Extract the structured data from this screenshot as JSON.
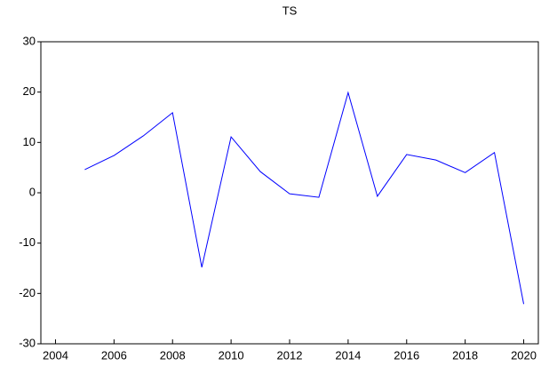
{
  "chart_data": {
    "type": "line",
    "title": "TS",
    "x": [
      2005,
      2006,
      2007,
      2008,
      2009,
      2010,
      2011,
      2012,
      2013,
      2014,
      2015,
      2016,
      2017,
      2018,
      2019,
      2020
    ],
    "series": [
      {
        "name": "TS",
        "color": "#0000ff",
        "values": [
          4.6,
          7.4,
          11.3,
          15.9,
          -14.8,
          11.1,
          4.2,
          -0.2,
          -0.9,
          19.9,
          -0.7,
          7.6,
          6.5,
          4.0,
          8.0,
          -22.1
        ]
      }
    ],
    "xlim": [
      2003.5,
      2020.5
    ],
    "xticks": [
      2004,
      2006,
      2008,
      2010,
      2012,
      2014,
      2016,
      2018,
      2020
    ],
    "ylim": [
      -30,
      30
    ],
    "yticks": [
      -30,
      -20,
      -10,
      0,
      10,
      20,
      30
    ],
    "grid": false
  }
}
